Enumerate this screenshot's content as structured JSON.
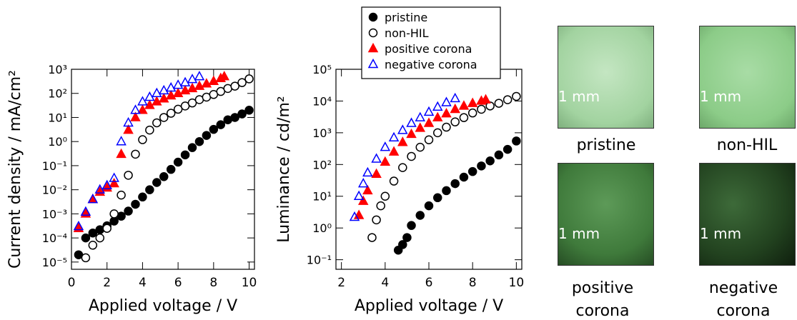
{
  "chart_data": [
    {
      "type": "scatter",
      "log_y": true,
      "xlabel": "Applied voltage / V",
      "ylabel": "Current density / mA/cm²",
      "xlim": [
        0,
        10.3
      ],
      "xticks": [
        0,
        2,
        4,
        6,
        8,
        10
      ],
      "ylim": [
        5e-06,
        1000
      ],
      "yticks": [
        {
          "value": 1e-05,
          "label": "10⁻⁵"
        },
        {
          "value": 0.0001,
          "label": "10⁻⁴"
        },
        {
          "value": 0.001,
          "label": "10⁻³"
        },
        {
          "value": 0.01,
          "label": "10⁻²"
        },
        {
          "value": 0.1,
          "label": "10⁻¹"
        },
        {
          "value": 1,
          "label": "10⁰"
        },
        {
          "value": 10,
          "label": "10¹"
        },
        {
          "value": 100,
          "label": "10²"
        },
        {
          "value": 1000,
          "label": "10³"
        }
      ],
      "series": [
        {
          "name": "pristine",
          "color": "#000000",
          "marker": "filled-circle",
          "x": [
            0.4,
            0.8,
            1.2,
            1.6,
            2.0,
            2.4,
            2.8,
            3.2,
            3.6,
            4.0,
            4.4,
            4.8,
            5.2,
            5.6,
            6.0,
            6.4,
            6.8,
            7.2,
            7.6,
            8.0,
            8.4,
            8.8,
            9.2,
            9.6,
            10.0
          ],
          "values": [
            2e-05,
            0.0001,
            0.00016,
            0.00022,
            0.00032,
            0.0005,
            0.0008,
            0.0013,
            0.0025,
            0.005,
            0.01,
            0.02,
            0.035,
            0.07,
            0.14,
            0.28,
            0.56,
            1,
            1.8,
            3.2,
            5,
            8,
            10,
            14,
            20
          ]
        },
        {
          "name": "non-HIL",
          "color": "#000000",
          "marker": "open-circle",
          "x": [
            0.8,
            1.2,
            1.6,
            2.0,
            2.4,
            2.8,
            3.2,
            3.6,
            4.0,
            4.4,
            4.8,
            5.2,
            5.6,
            6.0,
            6.4,
            6.8,
            7.2,
            7.6,
            8.0,
            8.4,
            8.8,
            9.2,
            9.6,
            10.0
          ],
          "values": [
            1.5e-05,
            5e-05,
            0.0001,
            0.00025,
            0.001,
            0.006,
            0.04,
            0.3,
            1.2,
            3,
            6,
            10,
            15,
            22,
            30,
            40,
            55,
            70,
            90,
            120,
            160,
            200,
            280,
            400
          ]
        },
        {
          "name": "positive corona",
          "color": "#ff0000",
          "marker": "filled-triangle",
          "x": [
            0.4,
            0.8,
            1.2,
            1.6,
            2.0,
            2.4,
            2.8,
            3.2,
            3.6,
            4.0,
            4.4,
            4.8,
            5.2,
            5.6,
            6.0,
            6.4,
            6.8,
            7.2,
            7.6,
            8.0,
            8.4,
            8.6
          ],
          "values": [
            0.00025,
            0.001,
            0.004,
            0.008,
            0.012,
            0.018,
            0.3,
            3,
            10,
            20,
            32,
            45,
            60,
            80,
            100,
            130,
            160,
            200,
            250,
            320,
            420,
            500
          ]
        },
        {
          "name": "negative corona",
          "color": "#0000ff",
          "marker": "open-triangle",
          "x": [
            0.4,
            0.8,
            1.2,
            1.6,
            2.0,
            2.4,
            2.8,
            3.2,
            3.6,
            4.0,
            4.4,
            4.8,
            5.2,
            5.6,
            6.0,
            6.4,
            6.8,
            7.2
          ],
          "values": [
            0.0003,
            0.0012,
            0.004,
            0.01,
            0.015,
            0.03,
            1,
            6,
            20,
            45,
            70,
            100,
            130,
            170,
            220,
            280,
            380,
            500
          ]
        }
      ]
    },
    {
      "type": "scatter",
      "log_y": true,
      "legend": "top-left",
      "xlabel": "Applied voltage / V",
      "ylabel": "Luminance / cd/m²",
      "xlim": [
        1.75,
        10.25
      ],
      "xticks": [
        2,
        4,
        6,
        8,
        10
      ],
      "ylim": [
        0.05,
        100000
      ],
      "yticks": [
        {
          "value": 0.1,
          "label": "10⁻¹"
        },
        {
          "value": 1,
          "label": "10⁰"
        },
        {
          "value": 10,
          "label": "10¹"
        },
        {
          "value": 100,
          "label": "10²"
        },
        {
          "value": 1000,
          "label": "10³"
        },
        {
          "value": 10000,
          "label": "10⁴"
        },
        {
          "value": 100000,
          "label": "10⁵"
        }
      ],
      "series": [
        {
          "name": "pristine",
          "color": "#000000",
          "marker": "filled-circle",
          "x": [
            4.6,
            4.8,
            5.0,
            5.2,
            5.6,
            6.0,
            6.4,
            6.8,
            7.2,
            7.6,
            8.0,
            8.4,
            8.8,
            9.2,
            9.6,
            10.0
          ],
          "values": [
            0.2,
            0.3,
            0.5,
            1.2,
            2.5,
            5,
            9,
            15,
            25,
            40,
            60,
            90,
            130,
            200,
            300,
            550
          ]
        },
        {
          "name": "non-HIL",
          "color": "#000000",
          "marker": "open-circle",
          "x": [
            3.4,
            3.6,
            3.8,
            4.0,
            4.4,
            4.8,
            5.2,
            5.6,
            6.0,
            6.4,
            6.8,
            7.2,
            7.6,
            8.0,
            8.4,
            8.8,
            9.2,
            9.6,
            10.0
          ],
          "values": [
            0.5,
            1.8,
            5,
            10,
            30,
            80,
            180,
            350,
            600,
            1000,
            1500,
            2200,
            3000,
            4200,
            5500,
            7000,
            8500,
            11000,
            14000
          ]
        },
        {
          "name": "positive corona",
          "color": "#ff0000",
          "marker": "filled-triangle",
          "x": [
            2.8,
            3.0,
            3.2,
            3.6,
            4.0,
            4.4,
            4.8,
            5.2,
            5.6,
            6.0,
            6.4,
            6.8,
            7.2,
            7.6,
            8.0,
            8.4,
            8.6
          ],
          "values": [
            2.5,
            7,
            15,
            50,
            120,
            250,
            500,
            900,
            1400,
            2000,
            3000,
            4000,
            5500,
            7000,
            8500,
            10000,
            11000
          ]
        },
        {
          "name": "negative corona",
          "color": "#0000ff",
          "marker": "open-triangle",
          "x": [
            2.6,
            2.8,
            3.0,
            3.2,
            3.6,
            4.0,
            4.4,
            4.8,
            5.2,
            5.6,
            6.0,
            6.4,
            6.8,
            7.2
          ],
          "values": [
            2.2,
            10,
            25,
            55,
            150,
            350,
            700,
            1200,
            2000,
            3000,
            4500,
            6500,
            9000,
            12000
          ]
        }
      ]
    }
  ],
  "images": [
    {
      "label": "pristine",
      "scale": "1 mm"
    },
    {
      "label": "non-HIL",
      "scale": "1 mm"
    },
    {
      "label": "positive corona",
      "scale": "1 mm"
    },
    {
      "label": "negative corona",
      "scale": "1 mm"
    }
  ]
}
